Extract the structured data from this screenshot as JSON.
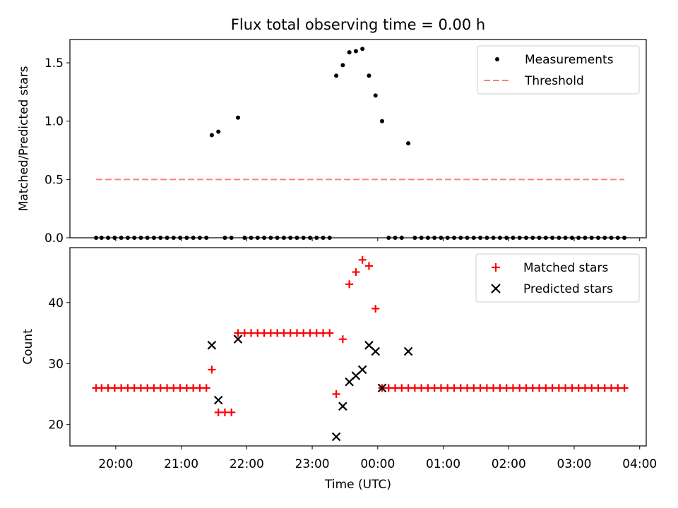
{
  "title": "Flux total observing time = 0.00 h",
  "colors": {
    "measurement": "#000000",
    "threshold": "#ff8080",
    "matched": "#ff0000",
    "predicted": "#000000"
  },
  "chart_data": [
    {
      "type": "scatter",
      "panel": "top",
      "title": "Flux total observing time = 0.00 h",
      "xlabel": "",
      "ylabel": "Matched/Predicted stars",
      "xlim": [
        "19:18",
        "04:06"
      ],
      "ylim": [
        0,
        1.7
      ],
      "yticks": [
        "0.0",
        "0.5",
        "1.0",
        "1.5"
      ],
      "legend": {
        "placement": "top-right",
        "entries": [
          "Measurements",
          "Threshold"
        ]
      },
      "series": [
        {
          "name": "Measurements",
          "marker": "dot",
          "points": [
            [
              "19:42",
              0
            ],
            [
              "19:47",
              0
            ],
            [
              "19:53",
              0
            ],
            [
              "19:59",
              0
            ],
            [
              "20:05",
              0
            ],
            [
              "20:11",
              0
            ],
            [
              "20:17",
              0
            ],
            [
              "20:23",
              0
            ],
            [
              "20:29",
              0
            ],
            [
              "20:35",
              0
            ],
            [
              "20:41",
              0
            ],
            [
              "20:47",
              0
            ],
            [
              "20:53",
              0
            ],
            [
              "20:59",
              0
            ],
            [
              "21:05",
              0
            ],
            [
              "21:11",
              0
            ],
            [
              "21:17",
              0
            ],
            [
              "21:23",
              0
            ],
            [
              "21:28",
              0.88
            ],
            [
              "21:34",
              0.91
            ],
            [
              "21:40",
              0
            ],
            [
              "21:46",
              0
            ],
            [
              "21:52",
              1.03
            ],
            [
              "21:58",
              0
            ],
            [
              "22:04",
              0
            ],
            [
              "22:10",
              0
            ],
            [
              "22:16",
              0
            ],
            [
              "22:22",
              0
            ],
            [
              "22:28",
              0
            ],
            [
              "22:34",
              0
            ],
            [
              "22:40",
              0
            ],
            [
              "22:46",
              0
            ],
            [
              "22:52",
              0
            ],
            [
              "22:58",
              0
            ],
            [
              "23:04",
              0
            ],
            [
              "23:10",
              0
            ],
            [
              "23:16",
              0
            ],
            [
              "23:22",
              1.39
            ],
            [
              "23:28",
              1.48
            ],
            [
              "23:34",
              1.59
            ],
            [
              "23:40",
              1.6
            ],
            [
              "23:46",
              1.62
            ],
            [
              "23:52",
              1.39
            ],
            [
              "23:58",
              1.22
            ],
            [
              "00:04",
              1.0
            ],
            [
              "00:10",
              0
            ],
            [
              "00:16",
              0
            ],
            [
              "00:22",
              0
            ],
            [
              "00:28",
              0.81
            ],
            [
              "00:34",
              0
            ],
            [
              "00:40",
              0
            ],
            [
              "00:46",
              0
            ],
            [
              "00:52",
              0
            ],
            [
              "00:58",
              0
            ],
            [
              "01:04",
              0
            ],
            [
              "01:10",
              0
            ],
            [
              "01:16",
              0
            ],
            [
              "01:22",
              0
            ],
            [
              "01:28",
              0
            ],
            [
              "01:34",
              0
            ],
            [
              "01:40",
              0
            ],
            [
              "01:46",
              0
            ],
            [
              "01:52",
              0
            ],
            [
              "01:58",
              0
            ],
            [
              "02:04",
              0
            ],
            [
              "02:10",
              0
            ],
            [
              "02:16",
              0
            ],
            [
              "02:22",
              0
            ],
            [
              "02:28",
              0
            ],
            [
              "02:34",
              0
            ],
            [
              "02:40",
              0
            ],
            [
              "02:46",
              0
            ],
            [
              "02:52",
              0
            ],
            [
              "02:58",
              0
            ],
            [
              "03:04",
              0
            ],
            [
              "03:10",
              0
            ],
            [
              "03:16",
              0
            ],
            [
              "03:22",
              0
            ],
            [
              "03:28",
              0
            ],
            [
              "03:34",
              0
            ],
            [
              "03:40",
              0
            ],
            [
              "03:46",
              0
            ]
          ]
        },
        {
          "name": "Threshold",
          "style": "dashed",
          "points": [
            [
              "19:42",
              0.5
            ],
            [
              "03:46",
              0.5
            ]
          ]
        }
      ]
    },
    {
      "type": "scatter",
      "panel": "bottom",
      "xlabel": "Time (UTC)",
      "ylabel": "Count",
      "xlim": [
        "19:18",
        "04:06"
      ],
      "ylim": [
        16.5,
        49
      ],
      "yticks": [
        "20",
        "30",
        "40"
      ],
      "xticks": [
        "20:00",
        "21:00",
        "22:00",
        "23:00",
        "00:00",
        "01:00",
        "02:00",
        "03:00",
        "04:00"
      ],
      "legend": {
        "placement": "top-right",
        "entries": [
          "Matched stars",
          "Predicted stars"
        ]
      },
      "series": [
        {
          "name": "Matched stars",
          "marker": "plus",
          "points": [
            [
              "19:42",
              26
            ],
            [
              "19:47",
              26
            ],
            [
              "19:53",
              26
            ],
            [
              "19:59",
              26
            ],
            [
              "20:05",
              26
            ],
            [
              "20:11",
              26
            ],
            [
              "20:17",
              26
            ],
            [
              "20:23",
              26
            ],
            [
              "20:29",
              26
            ],
            [
              "20:35",
              26
            ],
            [
              "20:41",
              26
            ],
            [
              "20:47",
              26
            ],
            [
              "20:53",
              26
            ],
            [
              "20:59",
              26
            ],
            [
              "21:05",
              26
            ],
            [
              "21:11",
              26
            ],
            [
              "21:17",
              26
            ],
            [
              "21:23",
              26
            ],
            [
              "21:28",
              29
            ],
            [
              "21:34",
              22
            ],
            [
              "21:40",
              22
            ],
            [
              "21:46",
              22
            ],
            [
              "21:52",
              35
            ],
            [
              "21:58",
              35
            ],
            [
              "22:04",
              35
            ],
            [
              "22:10",
              35
            ],
            [
              "22:16",
              35
            ],
            [
              "22:22",
              35
            ],
            [
              "22:28",
              35
            ],
            [
              "22:34",
              35
            ],
            [
              "22:40",
              35
            ],
            [
              "22:46",
              35
            ],
            [
              "22:52",
              35
            ],
            [
              "22:58",
              35
            ],
            [
              "23:04",
              35
            ],
            [
              "23:10",
              35
            ],
            [
              "23:16",
              35
            ],
            [
              "23:22",
              25
            ],
            [
              "23:28",
              34
            ],
            [
              "23:34",
              43
            ],
            [
              "23:40",
              45
            ],
            [
              "23:46",
              47
            ],
            [
              "23:52",
              46
            ],
            [
              "23:58",
              39
            ],
            [
              "00:04",
              26
            ],
            [
              "00:10",
              26
            ],
            [
              "00:16",
              26
            ],
            [
              "00:22",
              26
            ],
            [
              "00:28",
              26
            ],
            [
              "00:34",
              26
            ],
            [
              "00:40",
              26
            ],
            [
              "00:46",
              26
            ],
            [
              "00:52",
              26
            ],
            [
              "00:58",
              26
            ],
            [
              "01:04",
              26
            ],
            [
              "01:10",
              26
            ],
            [
              "01:16",
              26
            ],
            [
              "01:22",
              26
            ],
            [
              "01:28",
              26
            ],
            [
              "01:34",
              26
            ],
            [
              "01:40",
              26
            ],
            [
              "01:46",
              26
            ],
            [
              "01:52",
              26
            ],
            [
              "01:58",
              26
            ],
            [
              "02:04",
              26
            ],
            [
              "02:10",
              26
            ],
            [
              "02:16",
              26
            ],
            [
              "02:22",
              26
            ],
            [
              "02:28",
              26
            ],
            [
              "02:34",
              26
            ],
            [
              "02:40",
              26
            ],
            [
              "02:46",
              26
            ],
            [
              "02:52",
              26
            ],
            [
              "02:58",
              26
            ],
            [
              "03:04",
              26
            ],
            [
              "03:10",
              26
            ],
            [
              "03:16",
              26
            ],
            [
              "03:22",
              26
            ],
            [
              "03:28",
              26
            ],
            [
              "03:34",
              26
            ],
            [
              "03:40",
              26
            ],
            [
              "03:46",
              26
            ]
          ]
        },
        {
          "name": "Predicted stars",
          "marker": "x",
          "points": [
            [
              "21:28",
              33
            ],
            [
              "21:34",
              24
            ],
            [
              "21:52",
              34
            ],
            [
              "23:22",
              18
            ],
            [
              "23:28",
              23
            ],
            [
              "23:34",
              27
            ],
            [
              "23:40",
              28
            ],
            [
              "23:46",
              29
            ],
            [
              "23:52",
              33
            ],
            [
              "23:58",
              32
            ],
            [
              "00:04",
              26
            ],
            [
              "00:28",
              32
            ]
          ]
        }
      ]
    }
  ]
}
